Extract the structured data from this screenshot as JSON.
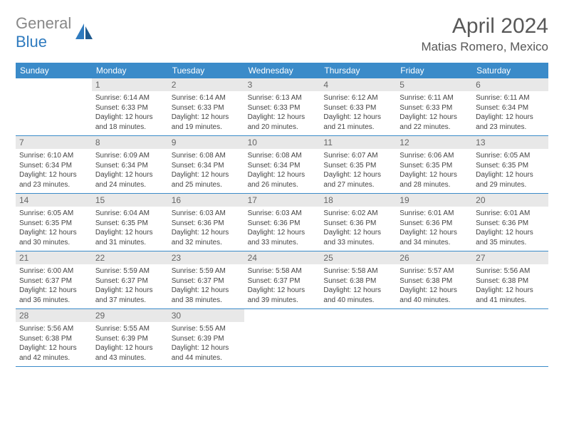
{
  "logo": {
    "part1": "General",
    "part2": "Blue"
  },
  "title": "April 2024",
  "location": "Matias Romero, Mexico",
  "colors": {
    "header_bg": "#3b8bc9",
    "header_text": "#ffffff",
    "daynum_bg": "#e8e8e8",
    "daynum_text": "#666666",
    "body_text": "#444444",
    "rule": "#3b8bc9",
    "logo_gray": "#888888",
    "logo_blue": "#2f7bbf"
  },
  "day_headers": [
    "Sunday",
    "Monday",
    "Tuesday",
    "Wednesday",
    "Thursday",
    "Friday",
    "Saturday"
  ],
  "weeks": [
    [
      null,
      {
        "n": "1",
        "sr": "Sunrise: 6:14 AM",
        "ss": "Sunset: 6:33 PM",
        "dl": "Daylight: 12 hours and 18 minutes."
      },
      {
        "n": "2",
        "sr": "Sunrise: 6:14 AM",
        "ss": "Sunset: 6:33 PM",
        "dl": "Daylight: 12 hours and 19 minutes."
      },
      {
        "n": "3",
        "sr": "Sunrise: 6:13 AM",
        "ss": "Sunset: 6:33 PM",
        "dl": "Daylight: 12 hours and 20 minutes."
      },
      {
        "n": "4",
        "sr": "Sunrise: 6:12 AM",
        "ss": "Sunset: 6:33 PM",
        "dl": "Daylight: 12 hours and 21 minutes."
      },
      {
        "n": "5",
        "sr": "Sunrise: 6:11 AM",
        "ss": "Sunset: 6:33 PM",
        "dl": "Daylight: 12 hours and 22 minutes."
      },
      {
        "n": "6",
        "sr": "Sunrise: 6:11 AM",
        "ss": "Sunset: 6:34 PM",
        "dl": "Daylight: 12 hours and 23 minutes."
      }
    ],
    [
      {
        "n": "7",
        "sr": "Sunrise: 6:10 AM",
        "ss": "Sunset: 6:34 PM",
        "dl": "Daylight: 12 hours and 23 minutes."
      },
      {
        "n": "8",
        "sr": "Sunrise: 6:09 AM",
        "ss": "Sunset: 6:34 PM",
        "dl": "Daylight: 12 hours and 24 minutes."
      },
      {
        "n": "9",
        "sr": "Sunrise: 6:08 AM",
        "ss": "Sunset: 6:34 PM",
        "dl": "Daylight: 12 hours and 25 minutes."
      },
      {
        "n": "10",
        "sr": "Sunrise: 6:08 AM",
        "ss": "Sunset: 6:34 PM",
        "dl": "Daylight: 12 hours and 26 minutes."
      },
      {
        "n": "11",
        "sr": "Sunrise: 6:07 AM",
        "ss": "Sunset: 6:35 PM",
        "dl": "Daylight: 12 hours and 27 minutes."
      },
      {
        "n": "12",
        "sr": "Sunrise: 6:06 AM",
        "ss": "Sunset: 6:35 PM",
        "dl": "Daylight: 12 hours and 28 minutes."
      },
      {
        "n": "13",
        "sr": "Sunrise: 6:05 AM",
        "ss": "Sunset: 6:35 PM",
        "dl": "Daylight: 12 hours and 29 minutes."
      }
    ],
    [
      {
        "n": "14",
        "sr": "Sunrise: 6:05 AM",
        "ss": "Sunset: 6:35 PM",
        "dl": "Daylight: 12 hours and 30 minutes."
      },
      {
        "n": "15",
        "sr": "Sunrise: 6:04 AM",
        "ss": "Sunset: 6:35 PM",
        "dl": "Daylight: 12 hours and 31 minutes."
      },
      {
        "n": "16",
        "sr": "Sunrise: 6:03 AM",
        "ss": "Sunset: 6:36 PM",
        "dl": "Daylight: 12 hours and 32 minutes."
      },
      {
        "n": "17",
        "sr": "Sunrise: 6:03 AM",
        "ss": "Sunset: 6:36 PM",
        "dl": "Daylight: 12 hours and 33 minutes."
      },
      {
        "n": "18",
        "sr": "Sunrise: 6:02 AM",
        "ss": "Sunset: 6:36 PM",
        "dl": "Daylight: 12 hours and 33 minutes."
      },
      {
        "n": "19",
        "sr": "Sunrise: 6:01 AM",
        "ss": "Sunset: 6:36 PM",
        "dl": "Daylight: 12 hours and 34 minutes."
      },
      {
        "n": "20",
        "sr": "Sunrise: 6:01 AM",
        "ss": "Sunset: 6:36 PM",
        "dl": "Daylight: 12 hours and 35 minutes."
      }
    ],
    [
      {
        "n": "21",
        "sr": "Sunrise: 6:00 AM",
        "ss": "Sunset: 6:37 PM",
        "dl": "Daylight: 12 hours and 36 minutes."
      },
      {
        "n": "22",
        "sr": "Sunrise: 5:59 AM",
        "ss": "Sunset: 6:37 PM",
        "dl": "Daylight: 12 hours and 37 minutes."
      },
      {
        "n": "23",
        "sr": "Sunrise: 5:59 AM",
        "ss": "Sunset: 6:37 PM",
        "dl": "Daylight: 12 hours and 38 minutes."
      },
      {
        "n": "24",
        "sr": "Sunrise: 5:58 AM",
        "ss": "Sunset: 6:37 PM",
        "dl": "Daylight: 12 hours and 39 minutes."
      },
      {
        "n": "25",
        "sr": "Sunrise: 5:58 AM",
        "ss": "Sunset: 6:38 PM",
        "dl": "Daylight: 12 hours and 40 minutes."
      },
      {
        "n": "26",
        "sr": "Sunrise: 5:57 AM",
        "ss": "Sunset: 6:38 PM",
        "dl": "Daylight: 12 hours and 40 minutes."
      },
      {
        "n": "27",
        "sr": "Sunrise: 5:56 AM",
        "ss": "Sunset: 6:38 PM",
        "dl": "Daylight: 12 hours and 41 minutes."
      }
    ],
    [
      {
        "n": "28",
        "sr": "Sunrise: 5:56 AM",
        "ss": "Sunset: 6:38 PM",
        "dl": "Daylight: 12 hours and 42 minutes."
      },
      {
        "n": "29",
        "sr": "Sunrise: 5:55 AM",
        "ss": "Sunset: 6:39 PM",
        "dl": "Daylight: 12 hours and 43 minutes."
      },
      {
        "n": "30",
        "sr": "Sunrise: 5:55 AM",
        "ss": "Sunset: 6:39 PM",
        "dl": "Daylight: 12 hours and 44 minutes."
      },
      null,
      null,
      null,
      null
    ]
  ]
}
